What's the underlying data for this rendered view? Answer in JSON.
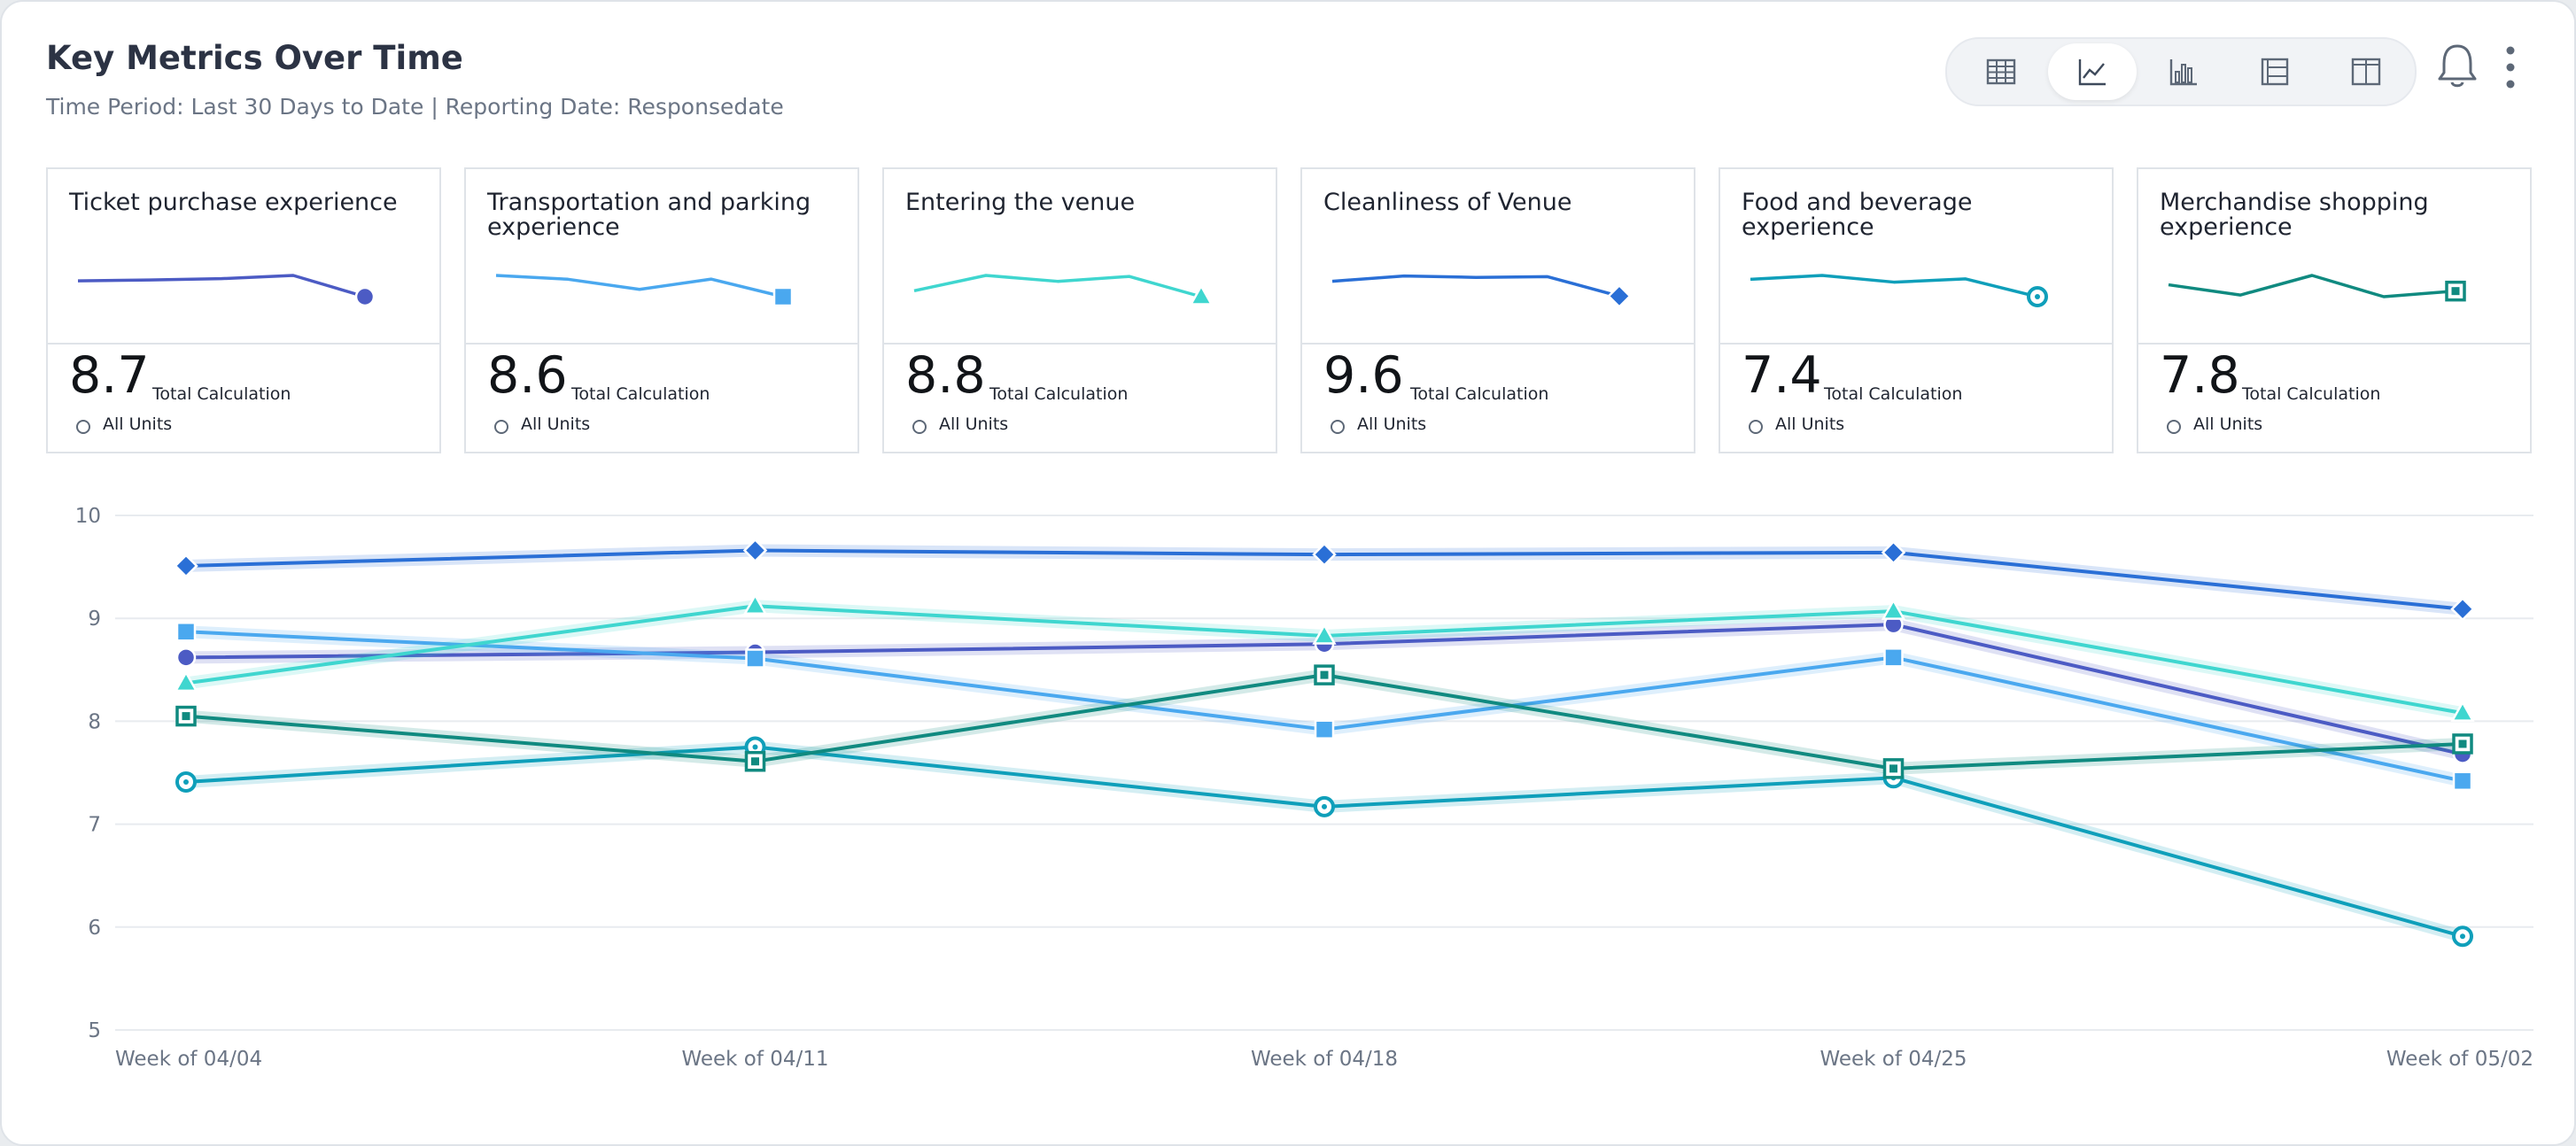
{
  "header": {
    "title": "Key Metrics Over Time",
    "subtitle": "Time Period: Last 30 Days to Date | Reporting Date: Responsedate"
  },
  "toolbar": {
    "buttons": [
      {
        "icon": "table-icon",
        "active": false
      },
      {
        "icon": "line-chart-icon",
        "active": true
      },
      {
        "icon": "bar-chart-icon",
        "active": false
      },
      {
        "icon": "list-view-icon",
        "active": false
      },
      {
        "icon": "columns-view-icon",
        "active": false
      }
    ],
    "bell_icon": "bell-icon",
    "menu_icon": "more-vertical-icon"
  },
  "tiles": [
    {
      "title": "Ticket purchase experience",
      "value": "8.7",
      "calc_label": "Total Calculation",
      "units_label": "All Units",
      "color": "#4c5bc4",
      "marker": "circle"
    },
    {
      "title": "Transportation and parking experience",
      "value": "8.6",
      "calc_label": "Total Calculation",
      "units_label": "All Units",
      "color": "#4aa8ef",
      "marker": "square"
    },
    {
      "title": "Entering the venue",
      "value": "8.8",
      "calc_label": "Total Calculation",
      "units_label": "All Units",
      "color": "#3fd6cf",
      "marker": "triangle"
    },
    {
      "title": "Cleanliness of Venue",
      "value": "9.6",
      "calc_label": "Total Calculation",
      "units_label": "All Units",
      "color": "#2a6fd6",
      "marker": "diamond"
    },
    {
      "title": "Food and beverage experience",
      "value": "7.4",
      "calc_label": "Total Calculation",
      "units_label": "All Units",
      "color": "#0f9fba",
      "marker": "ring"
    },
    {
      "title": "Merchandise shopping experience",
      "value": "7.8",
      "calc_label": "Total Calculation",
      "units_label": "All Units",
      "color": "#108a80",
      "marker": "boxed-square"
    }
  ],
  "chart_data": {
    "type": "line",
    "categories": [
      "Week of 04/04",
      "Week of 04/11",
      "Week of 04/18",
      "Week of 04/25",
      "Week of 05/02"
    ],
    "ylim": [
      5,
      10
    ],
    "yticks": [
      10,
      9,
      8,
      7,
      6,
      5
    ],
    "grid": true,
    "series": [
      {
        "name": "Ticket purchase experience",
        "values": [
          8.62,
          8.67,
          8.75,
          8.94,
          7.68
        ]
      },
      {
        "name": "Transportation and parking experience",
        "values": [
          8.87,
          8.61,
          7.92,
          8.62,
          7.42
        ]
      },
      {
        "name": "Entering the venue",
        "values": [
          8.37,
          9.12,
          8.83,
          9.07,
          8.08
        ]
      },
      {
        "name": "Cleanliness of Venue",
        "values": [
          9.51,
          9.66,
          9.62,
          9.64,
          9.09
        ]
      },
      {
        "name": "Food and beverage experience",
        "values": [
          7.41,
          7.75,
          7.17,
          7.45,
          5.91
        ]
      },
      {
        "name": "Merchandise shopping experience",
        "values": [
          8.05,
          7.61,
          8.45,
          7.54,
          7.78
        ]
      }
    ]
  }
}
